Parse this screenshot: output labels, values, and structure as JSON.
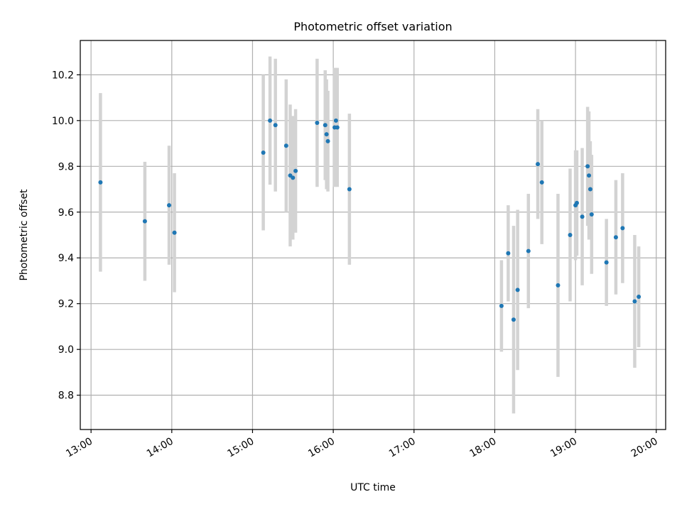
{
  "colors": {
    "points": "#1f77b4",
    "errorbars": "#d3d3d3",
    "grid": "#b0b0b0",
    "axes": "#000000",
    "background": "#ffffff"
  },
  "chart_data": {
    "type": "scatter",
    "title": "Photometric offset variation",
    "xlabel": "UTC time",
    "ylabel": "Photometric offset",
    "x_tick_labels": [
      "13:00",
      "14:00",
      "15:00",
      "16:00",
      "17:00",
      "18:00",
      "19:00",
      "20:00"
    ],
    "y_tick_labels": [
      "8.8",
      "9.0",
      "9.2",
      "9.4",
      "9.6",
      "9.8",
      "10.0",
      "10.2"
    ],
    "xlim": [
      "12:52",
      "20:07"
    ],
    "ylim": [
      8.65,
      10.35
    ],
    "grid": true,
    "points": [
      {
        "time": "13:07",
        "y": 9.73,
        "yerr": 0.39
      },
      {
        "time": "13:40",
        "y": 9.56,
        "yerr": 0.26
      },
      {
        "time": "13:58",
        "y": 9.63,
        "yerr": 0.26
      },
      {
        "time": "14:02",
        "y": 9.51,
        "yerr": 0.26
      },
      {
        "time": "15:08",
        "y": 9.86,
        "yerr": 0.34
      },
      {
        "time": "15:13",
        "y": 10.0,
        "yerr": 0.28
      },
      {
        "time": "15:17",
        "y": 9.98,
        "yerr": 0.29
      },
      {
        "time": "15:25",
        "y": 9.89,
        "yerr": 0.29
      },
      {
        "time": "15:28",
        "y": 9.76,
        "yerr": 0.31
      },
      {
        "time": "15:30",
        "y": 9.75,
        "yerr": 0.27
      },
      {
        "time": "15:32",
        "y": 9.78,
        "yerr": 0.27
      },
      {
        "time": "15:48",
        "y": 9.99,
        "yerr": 0.28
      },
      {
        "time": "15:54",
        "y": 9.98,
        "yerr": 0.24
      },
      {
        "time": "15:55",
        "y": 9.94,
        "yerr": 0.24
      },
      {
        "time": "15:56",
        "y": 9.91,
        "yerr": 0.22
      },
      {
        "time": "16:01",
        "y": 9.97,
        "yerr": 0.26
      },
      {
        "time": "16:02",
        "y": 10.0,
        "yerr": 0.23
      },
      {
        "time": "16:03",
        "y": 9.97,
        "yerr": 0.26
      },
      {
        "time": "16:12",
        "y": 9.7,
        "yerr": 0.33
      },
      {
        "time": "18:05",
        "y": 9.19,
        "yerr": 0.2
      },
      {
        "time": "18:10",
        "y": 9.42,
        "yerr": 0.21
      },
      {
        "time": "18:14",
        "y": 9.13,
        "yerr": 0.41
      },
      {
        "time": "18:17",
        "y": 9.26,
        "yerr": 0.35
      },
      {
        "time": "18:25",
        "y": 9.43,
        "yerr": 0.25
      },
      {
        "time": "18:32",
        "y": 9.81,
        "yerr": 0.24
      },
      {
        "time": "18:35",
        "y": 9.73,
        "yerr": 0.27
      },
      {
        "time": "18:47",
        "y": 9.28,
        "yerr": 0.4
      },
      {
        "time": "18:56",
        "y": 9.5,
        "yerr": 0.29
      },
      {
        "time": "19:00",
        "y": 9.63,
        "yerr": 0.24
      },
      {
        "time": "19:01",
        "y": 9.64,
        "yerr": 0.23
      },
      {
        "time": "19:05",
        "y": 9.58,
        "yerr": 0.3
      },
      {
        "time": "19:09",
        "y": 9.8,
        "yerr": 0.26
      },
      {
        "time": "19:10",
        "y": 9.76,
        "yerr": 0.28
      },
      {
        "time": "19:11",
        "y": 9.7,
        "yerr": 0.21
      },
      {
        "time": "19:12",
        "y": 9.59,
        "yerr": 0.26
      },
      {
        "time": "19:23",
        "y": 9.38,
        "yerr": 0.19
      },
      {
        "time": "19:30",
        "y": 9.49,
        "yerr": 0.25
      },
      {
        "time": "19:35",
        "y": 9.53,
        "yerr": 0.24
      },
      {
        "time": "19:44",
        "y": 9.21,
        "yerr": 0.29
      },
      {
        "time": "19:47",
        "y": 9.23,
        "yerr": 0.22
      }
    ]
  }
}
